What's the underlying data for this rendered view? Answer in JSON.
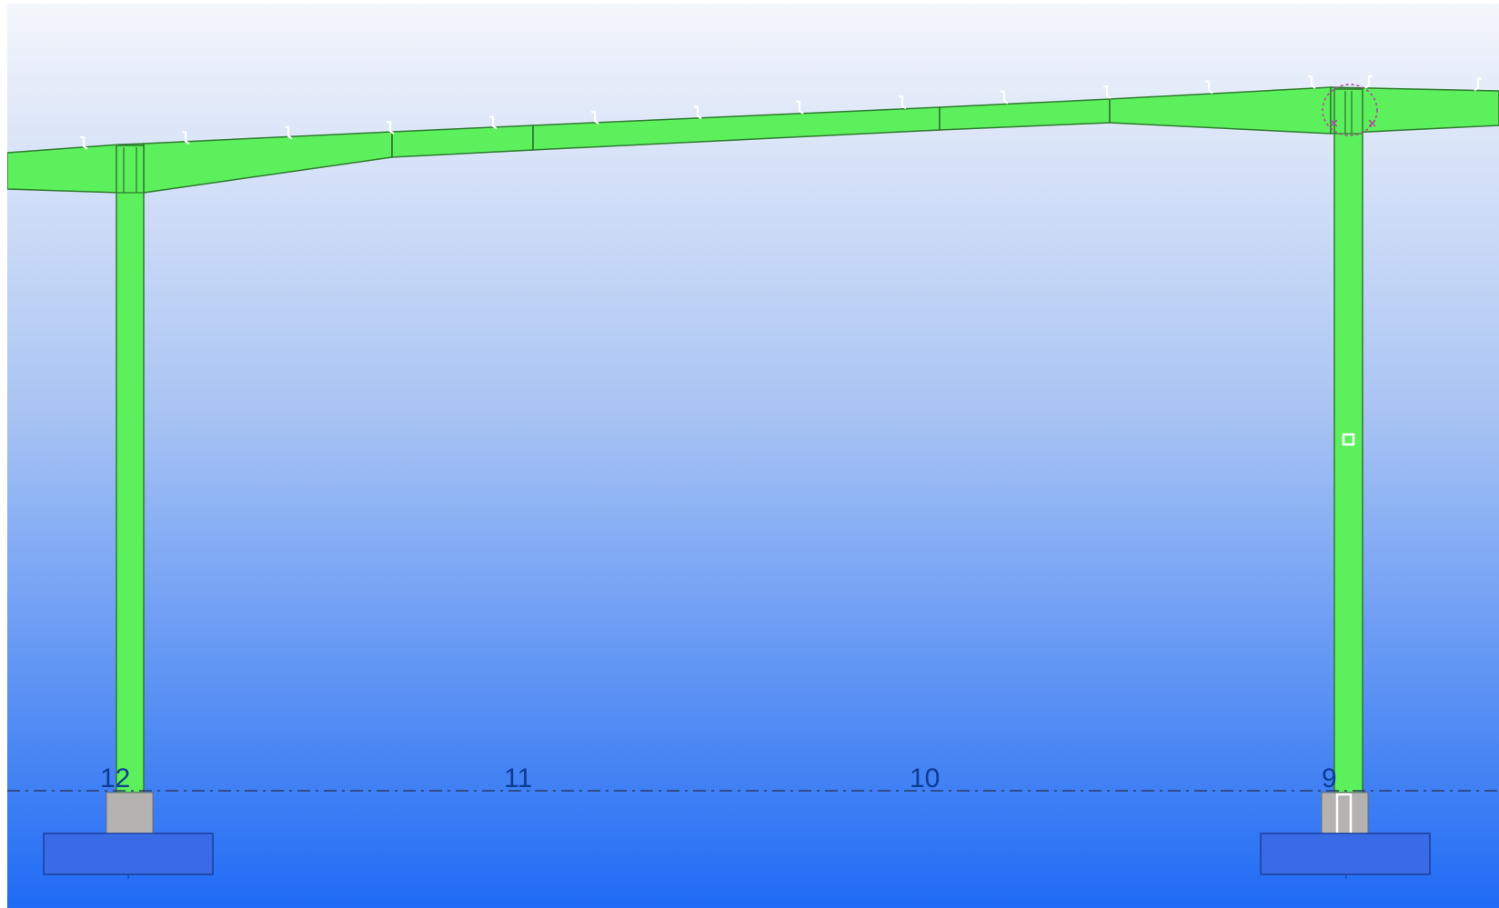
{
  "viewport": {
    "background_top_color": "#f4f6fb",
    "background_bottom_color": "#1f6bf5"
  },
  "structure": {
    "steel_color": "#5df05d",
    "steel_outline_color": "#2e7a2e",
    "pedestal_color": "#b5b2b2",
    "footing_color": "#3a6be6",
    "footing_outline_color": "#1c3e99",
    "purlin_marker_color": "#ffffff",
    "selection_marker_color": "#b04a9a"
  },
  "grid": {
    "line_color": "#2b3a66",
    "labels": [
      "12",
      "11",
      "10",
      "9"
    ]
  }
}
